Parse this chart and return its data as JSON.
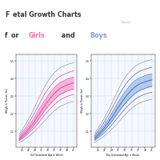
{
  "title_color_girls": "#FF69B4",
  "title_color_boys": "#8899DD",
  "title_color_main": "#333333",
  "bg_color": "#FFFFFF",
  "grid_color": "#BBCCDD",
  "chart_bg": "#F5F8FF",
  "girl_fill_color": "#FF99CC",
  "boy_fill_color": "#99BBEE",
  "girl_line_color": "#DD55AA",
  "boy_line_color": "#5577BB",
  "outer_line_color": "#999999",
  "weeks": [
    24,
    25,
    26,
    27,
    28,
    29,
    30,
    31,
    32,
    33,
    34,
    35,
    36,
    37,
    38,
    39,
    40,
    41
  ],
  "girl_p10": [
    0.5,
    0.65,
    0.8,
    1.0,
    1.18,
    1.38,
    1.62,
    1.88,
    2.12,
    2.36,
    2.57,
    2.76,
    2.94,
    3.08,
    3.18,
    3.27,
    3.35,
    3.4
  ],
  "girl_p25": [
    0.55,
    0.72,
    0.9,
    1.12,
    1.32,
    1.56,
    1.85,
    2.12,
    2.4,
    2.65,
    2.88,
    3.08,
    3.27,
    3.42,
    3.52,
    3.61,
    3.69,
    3.74
  ],
  "girl_p50": [
    0.62,
    0.82,
    1.02,
    1.26,
    1.5,
    1.78,
    2.1,
    2.4,
    2.7,
    2.98,
    3.23,
    3.46,
    3.66,
    3.8,
    3.9,
    3.99,
    4.07,
    4.12
  ],
  "girl_p75": [
    0.7,
    0.93,
    1.16,
    1.44,
    1.72,
    2.04,
    2.38,
    2.72,
    3.04,
    3.33,
    3.59,
    3.83,
    4.02,
    4.16,
    4.26,
    4.35,
    4.43,
    4.48
  ],
  "girl_p90": [
    0.79,
    1.04,
    1.31,
    1.62,
    1.96,
    2.32,
    2.7,
    3.08,
    3.43,
    3.73,
    4.0,
    4.23,
    4.42,
    4.56,
    4.66,
    4.74,
    4.82,
    4.87
  ],
  "girl_outer_low": [
    0.38,
    0.5,
    0.63,
    0.79,
    0.94,
    1.12,
    1.32,
    1.54,
    1.77,
    1.99,
    2.19,
    2.37,
    2.54,
    2.67,
    2.76,
    2.84,
    2.91,
    2.96
  ],
  "girl_outer_high": [
    0.92,
    1.2,
    1.52,
    1.88,
    2.26,
    2.67,
    3.1,
    3.52,
    3.91,
    4.24,
    4.52,
    4.76,
    4.95,
    5.09,
    5.18,
    5.26,
    5.33,
    5.38
  ],
  "boy_p10": [
    0.52,
    0.67,
    0.84,
    1.03,
    1.24,
    1.46,
    1.72,
    1.98,
    2.24,
    2.49,
    2.71,
    2.91,
    3.09,
    3.23,
    3.33,
    3.41,
    3.48,
    3.53
  ],
  "boy_p25": [
    0.58,
    0.76,
    0.96,
    1.18,
    1.42,
    1.68,
    1.97,
    2.26,
    2.55,
    2.82,
    3.06,
    3.27,
    3.46,
    3.6,
    3.7,
    3.78,
    3.85,
    3.9
  ],
  "boy_p50": [
    0.66,
    0.87,
    1.09,
    1.34,
    1.62,
    1.92,
    2.25,
    2.58,
    2.9,
    3.19,
    3.45,
    3.68,
    3.87,
    4.01,
    4.11,
    4.19,
    4.26,
    4.31
  ],
  "boy_p75": [
    0.74,
    0.98,
    1.24,
    1.52,
    1.84,
    2.18,
    2.54,
    2.9,
    3.24,
    3.55,
    3.82,
    4.06,
    4.25,
    4.39,
    4.49,
    4.57,
    4.64,
    4.69
  ],
  "boy_p90": [
    0.83,
    1.1,
    1.39,
    1.72,
    2.07,
    2.46,
    2.86,
    3.26,
    3.63,
    3.96,
    4.24,
    4.47,
    4.66,
    4.8,
    4.9,
    4.97,
    5.04,
    5.09
  ],
  "boy_outer_low": [
    0.4,
    0.53,
    0.67,
    0.83,
    1.0,
    1.19,
    1.4,
    1.64,
    1.89,
    2.12,
    2.33,
    2.52,
    2.69,
    2.82,
    2.91,
    2.99,
    3.05,
    3.1
  ],
  "boy_outer_high": [
    0.96,
    1.26,
    1.59,
    1.96,
    2.36,
    2.8,
    3.24,
    3.68,
    4.09,
    4.44,
    4.73,
    4.96,
    5.15,
    5.29,
    5.38,
    5.46,
    5.52,
    5.57
  ],
  "ylim": [
    0.1,
    5.9
  ],
  "xlim": [
    23,
    42
  ],
  "yticks": [
    1.1,
    2.2,
    3.3,
    4.4,
    5.5
  ],
  "xticks": [
    25,
    27,
    29,
    31,
    33,
    35,
    37,
    39,
    41
  ],
  "xlabel_girl": "Girl Gestational Age in Weeks",
  "xlabel_boy": "Boy Gestational Age in Weeks",
  "ylabel": "Weight in Pounds (lbs)"
}
